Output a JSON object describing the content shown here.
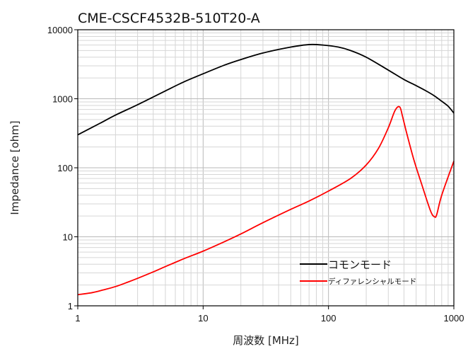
{
  "chart_data": {
    "type": "line",
    "title": "CME-CSCF4532B-510T20-A",
    "xlabel": "周波数 [MHz]",
    "ylabel": "Impedance [ohm]",
    "x_scale": "log",
    "y_scale": "log",
    "xlim": [
      1,
      1000
    ],
    "ylim": [
      1,
      10000
    ],
    "x_ticks": [
      "1",
      "10",
      "100",
      "1000"
    ],
    "y_ticks": [
      "1",
      "10",
      "100",
      "1000",
      "10000"
    ],
    "grid": true,
    "legend_position": "lower-right",
    "series": [
      {
        "name": "コモンモード",
        "color": "#000000",
        "x": [
          1,
          1.5,
          2,
          3,
          5,
          7,
          10,
          15,
          20,
          30,
          50,
          70,
          90,
          120,
          150,
          200,
          300,
          400,
          500,
          600,
          700,
          800,
          900,
          1000
        ],
        "y": [
          300,
          440,
          580,
          820,
          1300,
          1750,
          2300,
          3100,
          3700,
          4600,
          5600,
          6100,
          6000,
          5600,
          5000,
          4000,
          2600,
          1900,
          1550,
          1300,
          1100,
          920,
          780,
          620
        ]
      },
      {
        "name": "ディファレンシャルモード",
        "color": "#ff0000",
        "x": [
          1,
          1.3,
          1.6,
          2,
          2.5,
          3,
          4,
          5,
          7,
          10,
          15,
          20,
          30,
          50,
          70,
          100,
          150,
          200,
          250,
          300,
          340,
          370,
          390,
          420,
          480,
          550,
          650,
          700,
          730,
          800,
          1000
        ],
        "y": [
          1.45,
          1.55,
          1.7,
          1.9,
          2.2,
          2.5,
          3.1,
          3.7,
          4.8,
          6.2,
          8.6,
          11,
          16,
          25,
          33,
          46,
          70,
          110,
          190,
          380,
          680,
          760,
          550,
          320,
          130,
          60,
          24,
          19.5,
          21,
          40,
          125
        ]
      }
    ]
  }
}
